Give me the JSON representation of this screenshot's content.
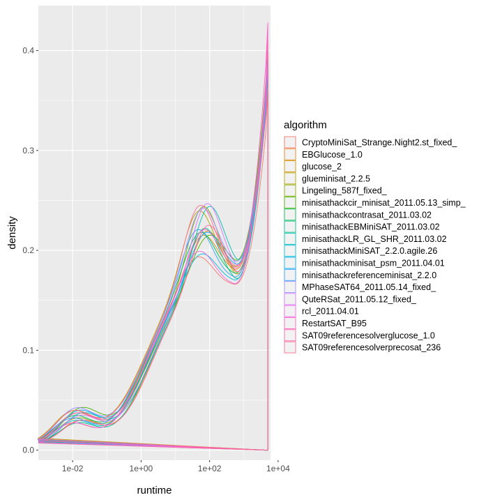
{
  "chart_data": {
    "type": "line",
    "xlabel": "runtime",
    "ylabel": "density",
    "x_scale": "log10",
    "xlim": [
      0.001,
      6000
    ],
    "ylim": [
      -0.01,
      0.445
    ],
    "x_ticks": [
      {
        "value": 0.01,
        "label": "1e-02"
      },
      {
        "value": 1,
        "label": "1e+00"
      },
      {
        "value": 100,
        "label": "1e+02"
      },
      {
        "value": 10000,
        "label": "1e+04"
      }
    ],
    "y_ticks": [
      {
        "value": 0.0,
        "label": "0.0"
      },
      {
        "value": 0.1,
        "label": "0.1"
      },
      {
        "value": 0.2,
        "label": "0.2"
      },
      {
        "value": 0.3,
        "label": "0.3"
      },
      {
        "value": 0.4,
        "label": "0.4"
      }
    ],
    "grid": true,
    "legend": {
      "title": "algorithm",
      "position": "right"
    },
    "series": [
      {
        "name": "CryptoMiniSat_Strange.Night2.st_fixed_",
        "color": "#F8766D",
        "peak": 0.365
      },
      {
        "name": "EBGlucose_1.0",
        "color": "#E7851E",
        "peak": 0.38
      },
      {
        "name": "glucose_2",
        "color": "#D09400",
        "peak": 0.39
      },
      {
        "name": "glueminisat_2.2.5",
        "color": "#B2A100",
        "peak": 0.395
      },
      {
        "name": "Lingeling_587f_fixed_",
        "color": "#89AC00",
        "peak": 0.385
      },
      {
        "name": "minisathackcir_minisat_2011.05.13_simp_",
        "color": "#45B500",
        "peak": 0.4
      },
      {
        "name": "minisathackcontrasat_2011.03.02",
        "color": "#00BC51",
        "peak": 0.38
      },
      {
        "name": "minisathackEBMiniSAT_2011.03.02",
        "color": "#00C087",
        "peak": 0.4
      },
      {
        "name": "minisathackLR_GL_SHR_2011.03.02",
        "color": "#00C0B2",
        "peak": 0.395
      },
      {
        "name": "minisathackMiniSAT_2.2.0.agile.26",
        "color": "#00BCD6",
        "peak": 0.385
      },
      {
        "name": "minisathackminisat_psm_2011.04.01",
        "color": "#00B3F2",
        "peak": 0.38
      },
      {
        "name": "minisathackreferenceminisat_2.2.0",
        "color": "#29A3FF",
        "peak": 0.39
      },
      {
        "name": "MPhaseSAT64_2011.05.14_fixed_",
        "color": "#9C8DFF",
        "peak": 0.385
      },
      {
        "name": "QuteRSat_2011.05.12_fixed_",
        "color": "#D277FF",
        "peak": 0.39
      },
      {
        "name": "rcl_2011.04.01",
        "color": "#F166E8",
        "peak": 0.42
      },
      {
        "name": "RestartSAT_B95",
        "color": "#FF61C7",
        "peak": 0.428
      },
      {
        "name": "SAT09referencesolverglucose_1.0",
        "color": "#FF63A5",
        "peak": 0.41
      },
      {
        "name": "SAT09referencesolverprecosat_236",
        "color": "#FF6C91",
        "peak": 0.365
      }
    ]
  }
}
